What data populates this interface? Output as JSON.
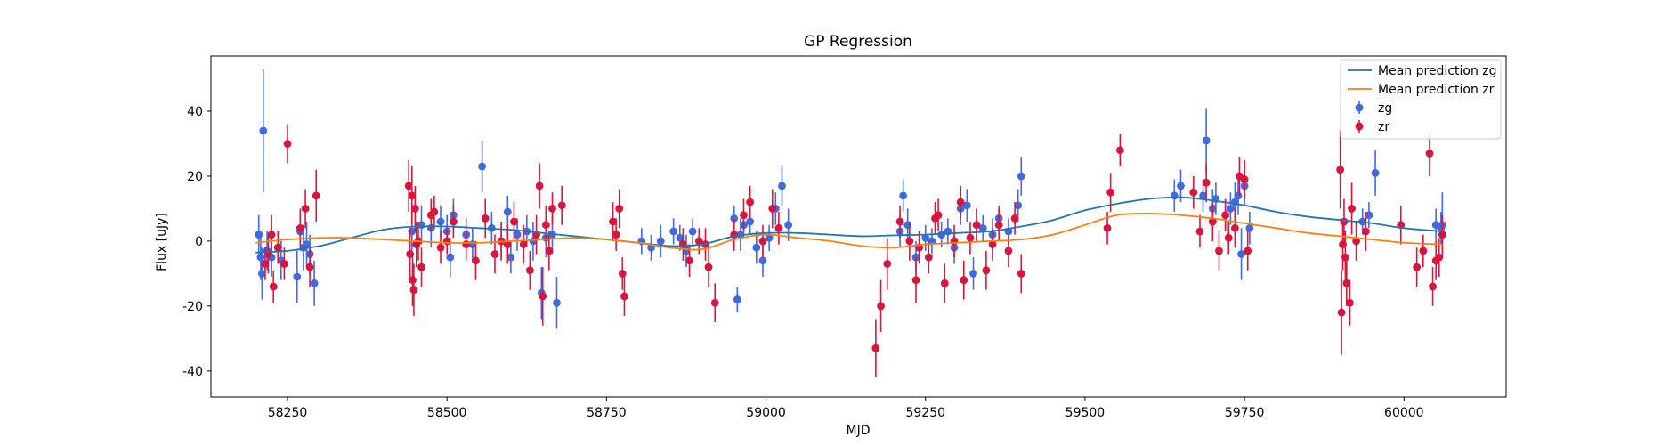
{
  "chart_data": {
    "type": "scatter",
    "title": "GP Regression",
    "xlabel": "MJD",
    "ylabel": "Flux [uJy]",
    "xlim": [
      58130,
      60160
    ],
    "ylim": [
      -48,
      57
    ],
    "xticks": [
      58250,
      58500,
      58750,
      59000,
      59250,
      59500,
      59750,
      60000
    ],
    "yticks": [
      -40,
      -20,
      0,
      20,
      40
    ],
    "legend": {
      "placement": "top-right",
      "entries": [
        {
          "label": "Mean prediction zg",
          "kind": "line",
          "color": "#1f77b4"
        },
        {
          "label": "Mean prediction zr",
          "kind": "line",
          "color": "#ff7f0e"
        },
        {
          "label": "zg",
          "kind": "errorbar",
          "color": "#4169e1"
        },
        {
          "label": "zr",
          "kind": "errorbar",
          "color": "#dc143c"
        }
      ]
    },
    "lines": [
      {
        "name": "Mean prediction zg",
        "color": "#1f77b4",
        "x": [
          58200,
          58250,
          58300,
          58350,
          58400,
          58450,
          58500,
          58550,
          58600,
          58650,
          58700,
          58750,
          58800,
          58850,
          58900,
          58950,
          59000,
          59050,
          59100,
          59150,
          59200,
          59250,
          59300,
          59350,
          59400,
          59450,
          59500,
          59550,
          59600,
          59650,
          59700,
          59750,
          59800,
          59850,
          59900,
          59950,
          60000,
          60060
        ],
        "y": [
          -3.5,
          -3.0,
          -1.5,
          1.0,
          3.5,
          4.5,
          4.5,
          4.0,
          3.5,
          2.5,
          1.5,
          0.5,
          -0.5,
          -1.5,
          -1.0,
          1.5,
          2.5,
          2.5,
          2.0,
          1.5,
          1.8,
          2.0,
          2.5,
          3.0,
          4.5,
          6.5,
          9.5,
          11.5,
          13.0,
          13.5,
          12.5,
          11.0,
          9.0,
          7.5,
          6.5,
          5.5,
          4.0,
          3.0
        ]
      },
      {
        "name": "Mean prediction zr",
        "color": "#ff7f0e",
        "x": [
          58200,
          58250,
          58300,
          58350,
          58400,
          58450,
          58500,
          58550,
          58600,
          58650,
          58700,
          58750,
          58800,
          58850,
          58900,
          58950,
          59000,
          59050,
          59100,
          59150,
          59200,
          59250,
          59300,
          59350,
          59400,
          59450,
          59500,
          59550,
          59600,
          59650,
          59700,
          59750,
          59800,
          59850,
          59900,
          59950,
          60000,
          60060
        ],
        "y": [
          -0.5,
          0.5,
          1.0,
          1.0,
          0.5,
          0.0,
          -0.5,
          -0.5,
          0.0,
          0.5,
          1.0,
          0.5,
          -0.5,
          -2.0,
          -2.5,
          0.5,
          2.0,
          1.0,
          0.0,
          -1.5,
          -2.0,
          -1.0,
          -0.5,
          0.0,
          0.5,
          2.0,
          5.0,
          8.0,
          8.5,
          8.0,
          7.0,
          5.5,
          4.0,
          2.5,
          1.5,
          0.5,
          -0.5,
          -1.0
        ]
      }
    ],
    "series": [
      {
        "name": "zg",
        "color": "#4169e1",
        "points": [
          [
            58205,
            2,
            6
          ],
          [
            58208,
            -5,
            7
          ],
          [
            58210,
            -10,
            8
          ],
          [
            58212,
            34,
            19
          ],
          [
            58218,
            -3,
            6
          ],
          [
            58225,
            -5,
            6
          ],
          [
            58240,
            -6,
            6
          ],
          [
            58265,
            -11,
            8
          ],
          [
            58270,
            3,
            6
          ],
          [
            58275,
            -2,
            7
          ],
          [
            58280,
            -1,
            7
          ],
          [
            58285,
            -4,
            6
          ],
          [
            58292,
            -13,
            7
          ],
          [
            58445,
            3,
            6
          ],
          [
            58460,
            5,
            6
          ],
          [
            58475,
            4,
            6
          ],
          [
            58490,
            6,
            5
          ],
          [
            58500,
            3,
            5
          ],
          [
            58505,
            -5,
            6
          ],
          [
            58510,
            8,
            5
          ],
          [
            58530,
            2,
            5
          ],
          [
            58540,
            -1,
            5
          ],
          [
            58555,
            23,
            8
          ],
          [
            58570,
            4,
            5
          ],
          [
            58585,
            0,
            5
          ],
          [
            58595,
            9,
            5
          ],
          [
            58600,
            -5,
            5
          ],
          [
            58610,
            2,
            5
          ],
          [
            58625,
            3,
            5
          ],
          [
            58635,
            0,
            6
          ],
          [
            58648,
            -16,
            8
          ],
          [
            58655,
            1,
            6
          ],
          [
            58665,
            2,
            6
          ],
          [
            58672,
            -19,
            8
          ],
          [
            58805,
            0,
            4
          ],
          [
            58820,
            -2,
            4
          ],
          [
            58835,
            0,
            5
          ],
          [
            58855,
            3,
            4
          ],
          [
            58865,
            1,
            4
          ],
          [
            58875,
            -3,
            5
          ],
          [
            58885,
            3,
            4
          ],
          [
            58950,
            7,
            4
          ],
          [
            58955,
            -18,
            4
          ],
          [
            58960,
            2,
            5
          ],
          [
            58965,
            5,
            4
          ],
          [
            58975,
            6,
            4
          ],
          [
            58985,
            -2,
            5
          ],
          [
            58995,
            -6,
            5
          ],
          [
            59005,
            1,
            4
          ],
          [
            59015,
            10,
            5
          ],
          [
            59025,
            17,
            6
          ],
          [
            59035,
            5,
            5
          ],
          [
            59210,
            3,
            5
          ],
          [
            59215,
            14,
            5
          ],
          [
            59222,
            5,
            5
          ],
          [
            59235,
            -5,
            5
          ],
          [
            59250,
            1,
            4
          ],
          [
            59260,
            0,
            4
          ],
          [
            59275,
            2,
            4
          ],
          [
            59285,
            3,
            4
          ],
          [
            59295,
            -2,
            5
          ],
          [
            59305,
            10,
            5
          ],
          [
            59315,
            11,
            5
          ],
          [
            59325,
            -10,
            5
          ],
          [
            59340,
            4,
            4
          ],
          [
            59355,
            2,
            5
          ],
          [
            59365,
            7,
            4
          ],
          [
            59380,
            3,
            4
          ],
          [
            59395,
            11,
            5
          ],
          [
            59400,
            20,
            6
          ],
          [
            59640,
            14,
            5
          ],
          [
            59650,
            17,
            5
          ],
          [
            59685,
            14,
            5
          ],
          [
            59690,
            31,
            10
          ],
          [
            59700,
            10,
            6
          ],
          [
            59705,
            13,
            5
          ],
          [
            59720,
            8,
            5
          ],
          [
            59728,
            10,
            5
          ],
          [
            59735,
            12,
            6
          ],
          [
            59740,
            14,
            6
          ],
          [
            59745,
            -4,
            8
          ],
          [
            59750,
            17,
            6
          ],
          [
            59758,
            4,
            5
          ],
          [
            59935,
            6,
            4
          ],
          [
            59945,
            8,
            4
          ],
          [
            59955,
            21,
            7
          ],
          [
            60050,
            5,
            5
          ],
          [
            60058,
            4,
            5
          ],
          [
            60060,
            5,
            10
          ]
        ]
      },
      {
        "name": "zr",
        "color": "#dc143c",
        "points": [
          [
            58215,
            -7,
            5
          ],
          [
            58220,
            -4,
            6
          ],
          [
            58225,
            2,
            6
          ],
          [
            58228,
            -14,
            5
          ],
          [
            58235,
            -2,
            5
          ],
          [
            58245,
            -7,
            5
          ],
          [
            58250,
            30,
            6
          ],
          [
            58270,
            4,
            6
          ],
          [
            58278,
            10,
            6
          ],
          [
            58285,
            -8,
            6
          ],
          [
            58295,
            14,
            8
          ],
          [
            58440,
            17,
            8
          ],
          [
            58442,
            -4,
            8
          ],
          [
            58445,
            14,
            9
          ],
          [
            58446,
            -12,
            8
          ],
          [
            58448,
            -15,
            8
          ],
          [
            58450,
            10,
            7
          ],
          [
            58452,
            -1,
            7
          ],
          [
            58455,
            0,
            6
          ],
          [
            58460,
            -8,
            6
          ],
          [
            58475,
            8,
            5
          ],
          [
            58480,
            9,
            5
          ],
          [
            58490,
            -2,
            5
          ],
          [
            58500,
            0,
            4
          ],
          [
            58510,
            6,
            5
          ],
          [
            58530,
            -1,
            5
          ],
          [
            58545,
            -6,
            6
          ],
          [
            58560,
            7,
            6
          ],
          [
            58575,
            -4,
            6
          ],
          [
            58585,
            0,
            6
          ],
          [
            58595,
            -1,
            6
          ],
          [
            58605,
            6,
            6
          ],
          [
            58620,
            -1,
            6
          ],
          [
            58630,
            -9,
            6
          ],
          [
            58640,
            2,
            6
          ],
          [
            58645,
            17,
            7
          ],
          [
            58650,
            -17,
            9
          ],
          [
            58655,
            5,
            6
          ],
          [
            58660,
            -3,
            6
          ],
          [
            58665,
            10,
            5
          ],
          [
            58680,
            11,
            6
          ],
          [
            58760,
            6,
            6
          ],
          [
            58765,
            2,
            5
          ],
          [
            58770,
            10,
            6
          ],
          [
            58775,
            -10,
            5
          ],
          [
            58778,
            -17,
            6
          ],
          [
            58870,
            -1,
            5
          ],
          [
            58880,
            -6,
            5
          ],
          [
            58895,
            0,
            4
          ],
          [
            58905,
            -1,
            5
          ],
          [
            58910,
            -8,
            6
          ],
          [
            58920,
            -19,
            6
          ],
          [
            58950,
            2,
            5
          ],
          [
            58965,
            8,
            5
          ],
          [
            58975,
            12,
            5
          ],
          [
            58995,
            0,
            5
          ],
          [
            59010,
            10,
            6
          ],
          [
            59020,
            4,
            5
          ],
          [
            59172,
            -33,
            9
          ],
          [
            59180,
            -20,
            8
          ],
          [
            59190,
            -7,
            8
          ],
          [
            59210,
            6,
            5
          ],
          [
            59225,
            0,
            6
          ],
          [
            59235,
            -12,
            7
          ],
          [
            59240,
            -2,
            5
          ],
          [
            59255,
            -5,
            5
          ],
          [
            59265,
            7,
            5
          ],
          [
            59270,
            8,
            5
          ],
          [
            59280,
            -13,
            6
          ],
          [
            59295,
            0,
            5
          ],
          [
            59305,
            12,
            5
          ],
          [
            59310,
            -12,
            6
          ],
          [
            59320,
            1,
            5
          ],
          [
            59330,
            5,
            5
          ],
          [
            59345,
            -9,
            6
          ],
          [
            59355,
            -1,
            5
          ],
          [
            59365,
            5,
            5
          ],
          [
            59380,
            -3,
            5
          ],
          [
            59390,
            7,
            5
          ],
          [
            59400,
            -10,
            6
          ],
          [
            59535,
            4,
            5
          ],
          [
            59540,
            15,
            6
          ],
          [
            59555,
            28,
            5
          ],
          [
            59670,
            15,
            5
          ],
          [
            59680,
            3,
            5
          ],
          [
            59690,
            18,
            6
          ],
          [
            59700,
            6,
            6
          ],
          [
            59710,
            -3,
            6
          ],
          [
            59720,
            8,
            5
          ],
          [
            59725,
            1,
            5
          ],
          [
            59735,
            4,
            6
          ],
          [
            59742,
            20,
            6
          ],
          [
            59750,
            19,
            6
          ],
          [
            59755,
            -3,
            6
          ],
          [
            59900,
            22,
            12
          ],
          [
            59902,
            -22,
            13
          ],
          [
            59904,
            -1,
            8
          ],
          [
            59906,
            6,
            7
          ],
          [
            59908,
            -5,
            8
          ],
          [
            59910,
            -13,
            7
          ],
          [
            59915,
            -19,
            7
          ],
          [
            59918,
            10,
            8
          ],
          [
            59925,
            0,
            6
          ],
          [
            59940,
            3,
            6
          ],
          [
            59995,
            5,
            6
          ],
          [
            60020,
            -8,
            6
          ],
          [
            60030,
            -3,
            5
          ],
          [
            60040,
            27,
            7
          ],
          [
            60045,
            -14,
            6
          ],
          [
            60050,
            -6,
            6
          ],
          [
            60055,
            -5,
            6
          ],
          [
            60060,
            2,
            6
          ]
        ]
      }
    ]
  }
}
